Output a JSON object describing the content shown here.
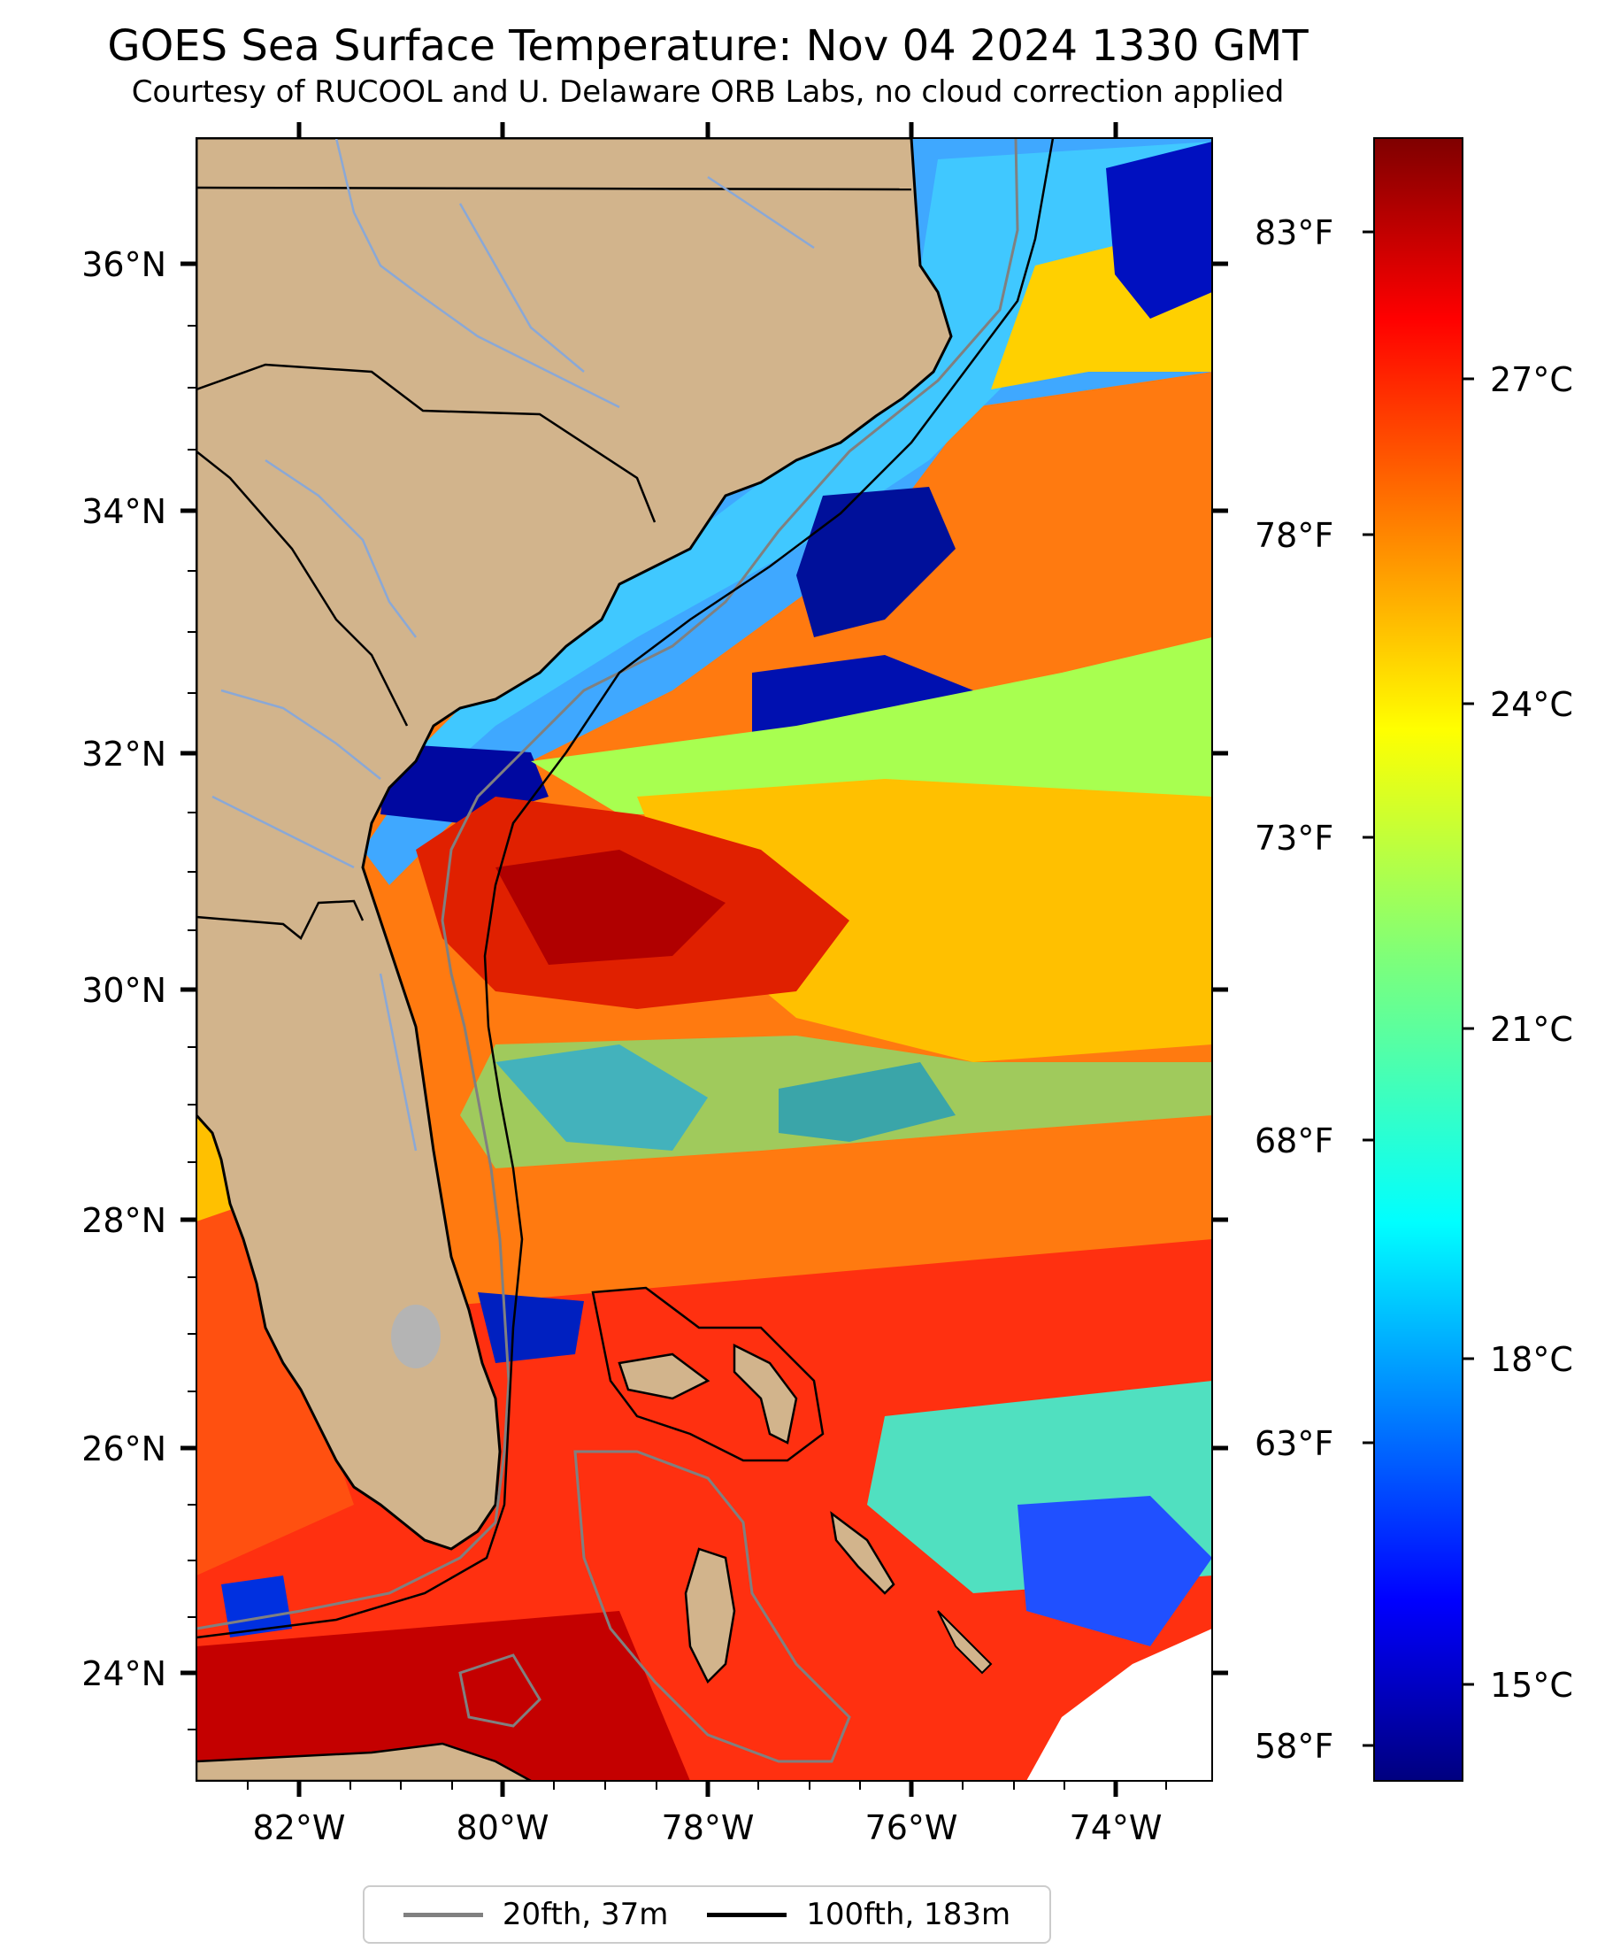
{
  "title": "GOES Sea Surface Temperature: Nov 04 2024 1330 GMT",
  "subtitle": "Courtesy of RUCOOL and U. Delaware ORB Labs, no cloud correction applied",
  "map": {
    "lon_ticks": [
      "82°W",
      "80°W",
      "78°W",
      "76°W",
      "74°W"
    ],
    "lat_ticks": [
      "36°N",
      "34°N",
      "32°N",
      "30°N",
      "28°N",
      "26°N",
      "24°N"
    ],
    "colors": {
      "land": "#d2b48c",
      "coast": "#000000",
      "rivers": "#8aa8d6",
      "lake": "#b4b4b4"
    }
  },
  "colorbar": {
    "fahrenheit_labels": [
      "83°F",
      "78°F",
      "73°F",
      "68°F",
      "63°F",
      "58°F"
    ],
    "celsius_labels": [
      "27°C",
      "24°C",
      "21°C",
      "18°C",
      "15°C"
    ],
    "colormap": "jet",
    "range_c": [
      14,
      29
    ]
  },
  "legend": {
    "items": [
      {
        "label": "20fth, 37m",
        "color": "#808080"
      },
      {
        "label": "100fth, 183m",
        "color": "#000000"
      }
    ]
  }
}
